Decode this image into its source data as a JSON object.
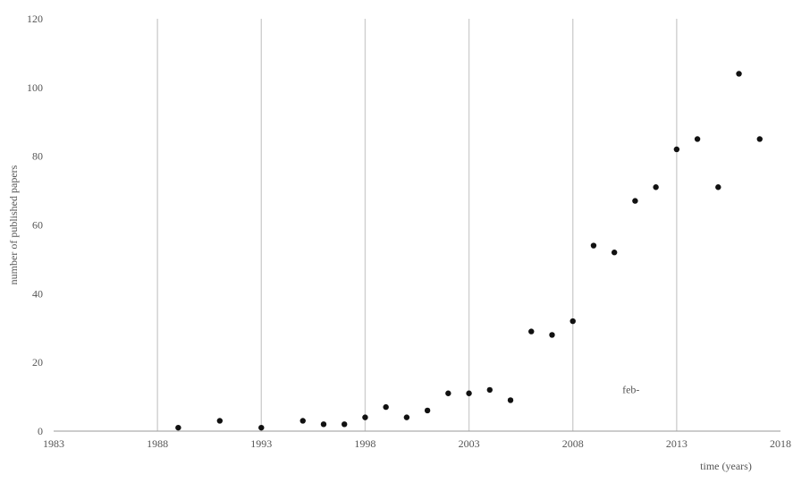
{
  "chart_data": {
    "type": "scatter",
    "title": "",
    "xlabel": "time (years)",
    "ylabel": "number of published papers",
    "xlim": [
      1983,
      2018
    ],
    "ylim": [
      0,
      120
    ],
    "x_ticks": [
      1983,
      1988,
      1993,
      1998,
      2003,
      2008,
      2013,
      2018
    ],
    "y_ticks": [
      0,
      20,
      40,
      60,
      80,
      100,
      120
    ],
    "grid": "vertical",
    "legend": "none",
    "point_color": "#111111",
    "grid_color": "#cfcfcf",
    "annotations": [
      {
        "text": "feb-",
        "x": 2010.8,
        "y": 11
      }
    ],
    "series": [
      {
        "x": [
          1989,
          1991,
          1993,
          1995,
          1996,
          1997,
          1998,
          1999,
          2000,
          2001,
          2002,
          2003,
          2004,
          2005,
          2006,
          2007,
          2008,
          2009,
          2010,
          2011,
          2012,
          2013,
          2014,
          2015,
          2016,
          2017
        ],
        "y": [
          1,
          3,
          1,
          3,
          2,
          2,
          4,
          7,
          4,
          6,
          11,
          11,
          12,
          9,
          29,
          28,
          32,
          54,
          52,
          67,
          71,
          82,
          85,
          71,
          104,
          85
        ]
      }
    ]
  }
}
